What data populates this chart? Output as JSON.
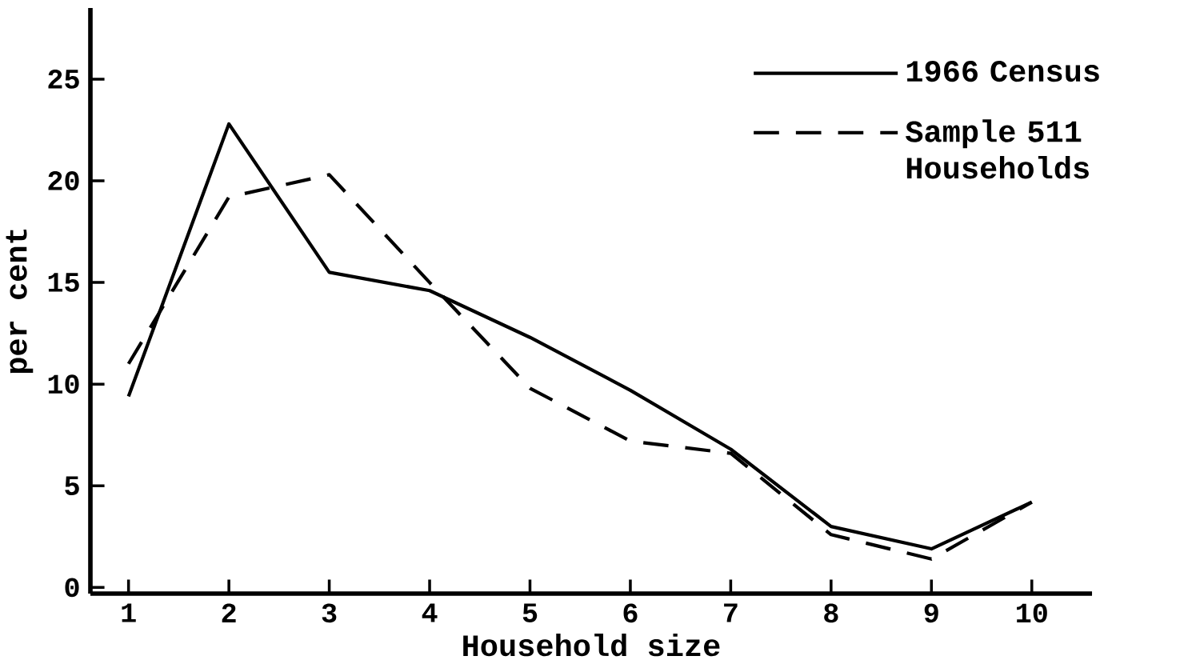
{
  "chart_data": {
    "type": "line",
    "xlabel": "Household size",
    "ylabel": "per cent",
    "x": [
      1,
      2,
      3,
      4,
      5,
      6,
      7,
      8,
      9,
      10
    ],
    "series": [
      {
        "name": "1966 Census",
        "color": "#000000",
        "line_style": "solid",
        "values": [
          9.4,
          22.8,
          15.5,
          14.6,
          12.3,
          9.7,
          6.8,
          3.0,
          1.9,
          4.2
        ]
      },
      {
        "name": "Sample 511 Households",
        "color": "#000000",
        "line_style": "dashed",
        "values": [
          11.0,
          19.2,
          20.3,
          15.0,
          9.8,
          7.2,
          6.6,
          2.6,
          1.4,
          4.2
        ]
      }
    ],
    "xlim": [
      0.62,
      10.6
    ],
    "ylim": [
      -0.3,
      28.5
    ],
    "xticks": [
      1,
      2,
      3,
      4,
      5,
      6,
      7,
      8,
      9,
      10
    ],
    "yticks": [
      0,
      5,
      10,
      15,
      20,
      25
    ],
    "grid": false,
    "legend": "top right",
    "marker": "none"
  }
}
